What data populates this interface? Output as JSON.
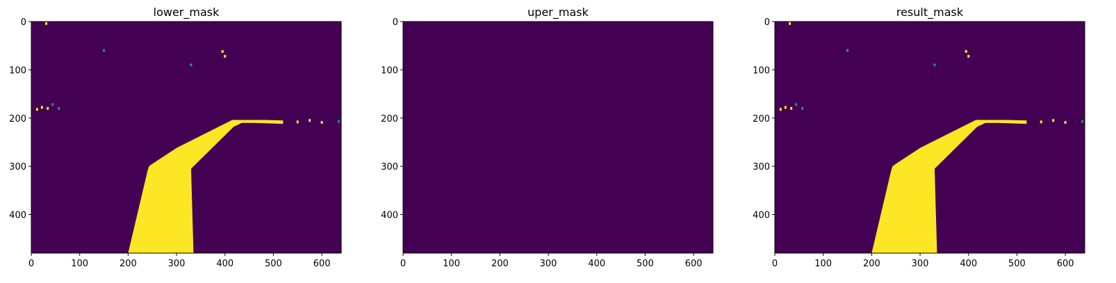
{
  "colors": {
    "background": "#440154",
    "foreground": "#fde725",
    "speck": "#21918c"
  },
  "chart_data": [
    {
      "type": "heatmap",
      "title": "lower_mask",
      "xlim": [
        0,
        640
      ],
      "ylim": [
        480,
        0
      ],
      "xticks": [
        0,
        100,
        200,
        300,
        400,
        500,
        600
      ],
      "yticks": [
        0,
        100,
        200,
        300,
        400
      ],
      "colormap": "viridis",
      "values": [
        0,
        255
      ],
      "mask_polygons": [
        [
          [
            200,
            480
          ],
          [
            335,
            480
          ],
          [
            330,
            305
          ],
          [
            418,
            218
          ],
          [
            435,
            210
          ],
          [
            460,
            210
          ],
          [
            520,
            212
          ],
          [
            520,
            205
          ],
          [
            480,
            204
          ],
          [
            415,
            204
          ],
          [
            300,
            262
          ],
          [
            250,
            295
          ],
          [
            243,
            300
          ],
          [
            240,
            310
          ]
        ]
      ],
      "specks": [
        [
          57,
          180
        ],
        [
          12,
          182
        ],
        [
          22,
          178
        ],
        [
          44,
          172
        ],
        [
          34,
          180
        ],
        [
          31,
          4
        ],
        [
          150,
          60
        ],
        [
          395,
          62
        ],
        [
          400,
          72
        ],
        [
          330,
          90
        ],
        [
          550,
          208
        ],
        [
          600,
          209
        ],
        [
          635,
          207
        ],
        [
          575,
          205
        ]
      ]
    },
    {
      "type": "heatmap",
      "title": "uper_mask",
      "xlim": [
        0,
        640
      ],
      "ylim": [
        480,
        0
      ],
      "xticks": [
        0,
        100,
        200,
        300,
        400,
        500,
        600
      ],
      "yticks": [
        0,
        100,
        200,
        300,
        400
      ],
      "colormap": "viridis",
      "values": [
        0
      ],
      "mask_polygons": [],
      "specks": []
    },
    {
      "type": "heatmap",
      "title": "result_mask",
      "xlim": [
        0,
        640
      ],
      "ylim": [
        480,
        0
      ],
      "xticks": [
        0,
        100,
        200,
        300,
        400,
        500,
        600
      ],
      "yticks": [
        0,
        100,
        200,
        300,
        400
      ],
      "colormap": "viridis",
      "values": [
        0,
        255
      ],
      "mask_polygons": [
        [
          [
            200,
            480
          ],
          [
            335,
            480
          ],
          [
            330,
            305
          ],
          [
            418,
            218
          ],
          [
            435,
            210
          ],
          [
            460,
            210
          ],
          [
            520,
            212
          ],
          [
            520,
            205
          ],
          [
            480,
            204
          ],
          [
            415,
            204
          ],
          [
            300,
            262
          ],
          [
            250,
            295
          ],
          [
            243,
            300
          ],
          [
            240,
            310
          ]
        ]
      ],
      "specks": [
        [
          57,
          180
        ],
        [
          12,
          182
        ],
        [
          22,
          178
        ],
        [
          44,
          172
        ],
        [
          34,
          180
        ],
        [
          31,
          4
        ],
        [
          150,
          60
        ],
        [
          395,
          62
        ],
        [
          400,
          72
        ],
        [
          330,
          90
        ],
        [
          550,
          208
        ],
        [
          600,
          209
        ],
        [
          635,
          207
        ],
        [
          575,
          205
        ]
      ]
    }
  ]
}
